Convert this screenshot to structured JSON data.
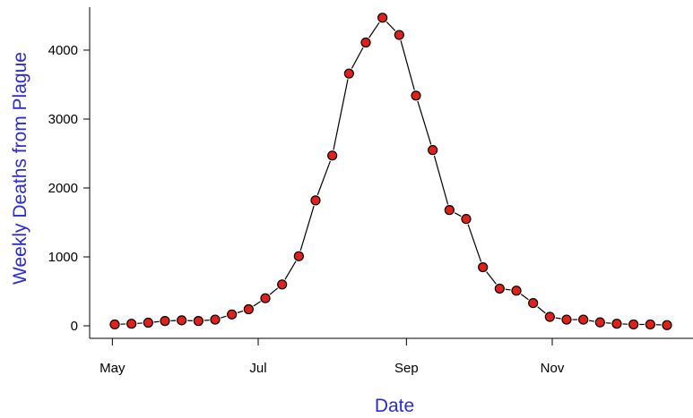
{
  "chart_data": {
    "type": "line",
    "title": "",
    "xlabel": "Date",
    "ylabel": "Weekly Deaths from Plague",
    "x_ticks": [
      "May",
      "Jul",
      "Sep",
      "Nov"
    ],
    "y_ticks": [
      0,
      1000,
      2000,
      3000,
      4000
    ],
    "grid": false,
    "series": [
      {
        "x": [
          "1665-05-02",
          "1665-05-09",
          "1665-05-16",
          "1665-05-23",
          "1665-05-30",
          "1665-06-06",
          "1665-06-13",
          "1665-06-20",
          "1665-06-27",
          "1665-07-04",
          "1665-07-11",
          "1665-07-18",
          "1665-07-25",
          "1665-08-01",
          "1665-08-08",
          "1665-08-15",
          "1665-08-22",
          "1665-08-29",
          "1665-09-05",
          "1665-09-12",
          "1665-09-19",
          "1665-09-26",
          "1665-10-03",
          "1665-10-10",
          "1665-10-17",
          "1665-10-24",
          "1665-10-31",
          "1665-11-07",
          "1665-11-14",
          "1665-11-21",
          "1665-11-28",
          "1665-12-05",
          "1665-12-12",
          "1665-12-19"
        ],
        "y": [
          20,
          30,
          45,
          70,
          80,
          70,
          90,
          165,
          240,
          400,
          600,
          1010,
          1820,
          2470,
          3660,
          4110,
          4470,
          4220,
          3340,
          2550,
          1680,
          1550,
          850,
          540,
          510,
          330,
          130,
          90,
          90,
          50,
          30,
          20,
          20,
          10
        ]
      }
    ],
    "colors": {
      "marker_fill": "#e0201b",
      "marker_stroke": "#000000",
      "line": "#000000",
      "axis_label": "#2b2bd8"
    }
  }
}
